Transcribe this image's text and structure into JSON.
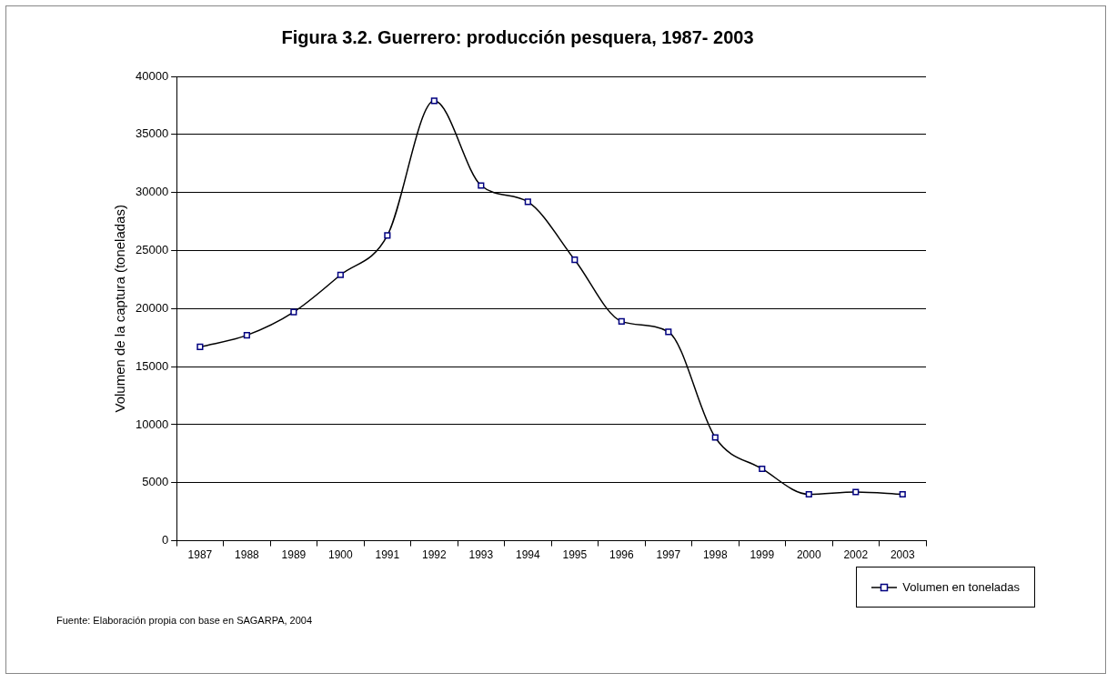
{
  "chart_data": {
    "type": "line",
    "title": "Figura 3.2. Guerrero: producción pesquera, 1987- 2003",
    "ylabel": "Volumen de la captura (toneladas)",
    "categories": [
      "1987",
      "1988",
      "1989",
      "1900",
      "1991",
      "1992",
      "1993",
      "1994",
      "1995",
      "1996",
      "1997",
      "1998",
      "1999",
      "2000",
      "2002",
      "2003"
    ],
    "series": [
      {
        "name": "Volumen en toneladas",
        "color": "#000080",
        "values": [
          16700,
          17700,
          19700,
          22900,
          26300,
          37900,
          30600,
          29200,
          24200,
          18900,
          18000,
          8900,
          6200,
          4000,
          4200,
          4000
        ]
      }
    ],
    "ylim": [
      0,
      40000
    ],
    "yticks": [
      0,
      5000,
      10000,
      15000,
      20000,
      25000,
      30000,
      35000,
      40000
    ],
    "grid": "y",
    "legend": "bottom right",
    "marker": "square",
    "line_style": "solid",
    "annotations": [
      "Fuente: Elaboración propia con base en SAGARPA, 2004"
    ]
  }
}
